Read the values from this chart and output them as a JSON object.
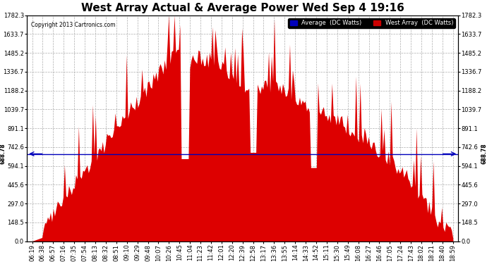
{
  "title": "West Array Actual & Average Power Wed Sep 4 19:16",
  "copyright": "Copyright 2013 Cartronics.com",
  "legend_labels": [
    "Average  (DC Watts)",
    "West Array  (DC Watts)"
  ],
  "legend_colors": [
    "#0000bb",
    "#cc0000"
  ],
  "avg_line_value": 688.78,
  "avg_label": "688.78",
  "ylim": [
    0,
    1782.3
  ],
  "yticks": [
    0.0,
    148.5,
    297.0,
    445.6,
    594.1,
    742.6,
    891.1,
    1039.7,
    1188.2,
    1336.7,
    1485.2,
    1633.7,
    1782.3
  ],
  "background_color": "#ffffff",
  "plot_bg_color": "#ffffff",
  "fill_color": "#dd0000",
  "avg_line_color": "#0000bb",
  "grid_color": "#999999",
  "title_fontsize": 11,
  "tick_fontsize": 6,
  "x_times": [
    "06:19",
    "06:38",
    "06:57",
    "07:16",
    "07:35",
    "07:54",
    "08:13",
    "08:32",
    "08:51",
    "09:10",
    "09:29",
    "09:48",
    "10:07",
    "10:26",
    "10:45",
    "11:04",
    "11:23",
    "11:42",
    "12:01",
    "12:20",
    "12:39",
    "12:58",
    "13:17",
    "13:36",
    "13:55",
    "14:14",
    "14:33",
    "14:52",
    "15:11",
    "15:30",
    "15:49",
    "16:08",
    "16:27",
    "16:46",
    "17:05",
    "17:24",
    "17:43",
    "18:02",
    "18:21",
    "18:40",
    "18:59"
  ]
}
